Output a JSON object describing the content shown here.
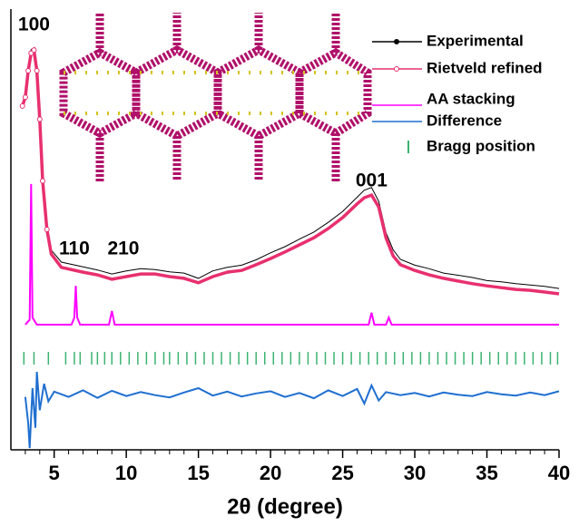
{
  "chart_data": {
    "type": "line",
    "xlabel": "2θ (degree)",
    "xlim": [
      2,
      40
    ],
    "xticks": [
      5,
      10,
      15,
      20,
      25,
      30,
      35,
      40
    ],
    "xminorticks": [
      3,
      4,
      6,
      7,
      8,
      9,
      11,
      12,
      13,
      14,
      16,
      17,
      18,
      19,
      21,
      22,
      23,
      24,
      26,
      27,
      28,
      29,
      31,
      32,
      33,
      34,
      36,
      37,
      38,
      39
    ],
    "ylim": [
      0,
      100
    ],
    "legend": "upper right",
    "annotations": [
      {
        "text": "100",
        "x": 3.6
      },
      {
        "text": "110",
        "x": 6.4
      },
      {
        "text": "210",
        "x": 9.8
      },
      {
        "text": "001",
        "x": 27
      }
    ],
    "series": [
      {
        "name": "Experimental",
        "color": "#000000",
        "x": [
          2.8,
          3,
          3.2,
          3.4,
          3.6,
          3.8,
          4,
          4.2,
          4.5,
          4.8,
          5.5,
          7,
          8,
          9,
          10,
          11,
          12,
          13,
          14,
          15,
          16,
          17,
          18,
          19,
          20,
          21,
          22,
          23,
          24,
          25,
          26,
          26.5,
          27,
          27.5,
          28,
          28.5,
          29,
          30,
          31,
          32,
          33,
          34,
          35,
          36,
          37,
          38,
          39,
          40
        ],
        "values": [
          78.5,
          80.6,
          86.4,
          90.8,
          91.2,
          86.5,
          75.6,
          61.7,
          50.8,
          45.3,
          42.6,
          41.5,
          40.8,
          39.9,
          40.6,
          41.1,
          40.9,
          40.4,
          40.1,
          38.9,
          40.6,
          41.4,
          41.9,
          43.1,
          44.7,
          46.1,
          47.8,
          49.4,
          51.6,
          54.1,
          57.3,
          58.9,
          59.5,
          56.4,
          49.3,
          45.4,
          43.2,
          41.9,
          41.1,
          40.1,
          39.6,
          39.1,
          38.4,
          38.1,
          37.7,
          37.4,
          37.1,
          36.6
        ]
      },
      {
        "name": "Rietveld refined",
        "color": "#e8306e",
        "x": [
          2.8,
          3,
          3.2,
          3.4,
          3.6,
          3.8,
          4,
          4.2,
          4.5,
          4.8,
          5.5,
          7,
          8,
          9,
          10,
          11,
          12,
          13,
          14,
          15,
          16,
          17,
          18,
          19,
          20,
          21,
          22,
          23,
          24,
          25,
          26,
          26.5,
          27,
          27.5,
          28,
          28.5,
          29,
          30,
          31,
          32,
          33,
          34,
          35,
          36,
          37,
          38,
          39,
          40
        ],
        "values": [
          78,
          80,
          86,
          90,
          90.7,
          86,
          75,
          61,
          50,
          44.4,
          41.4,
          40.3,
          39.7,
          38.7,
          39.3,
          39.9,
          39.9,
          39.3,
          38.9,
          37.9,
          39.3,
          40.3,
          40.7,
          42,
          43.4,
          44.9,
          46.5,
          48.1,
          50.2,
          52.7,
          55.8,
          57.2,
          57.8,
          55.1,
          48.1,
          44,
          42,
          40.7,
          39.7,
          38.9,
          38.3,
          37.7,
          37.2,
          36.8,
          36.4,
          36.2,
          35.8,
          35.4
        ]
      },
      {
        "name": "AA stacking",
        "color": "#ff00ff",
        "x": [
          3,
          3.3,
          3.4,
          3.5,
          3.8,
          6.2,
          6.4,
          6.5,
          6.6,
          6.8,
          8.8,
          9,
          9.2,
          26.8,
          27,
          27.2,
          28,
          28.2,
          28.4,
          40
        ],
        "values": [
          28.4,
          29.5,
          60.3,
          30,
          28.4,
          28.4,
          30,
          37.2,
          30,
          28.4,
          28.4,
          31.5,
          28.4,
          28.4,
          31.1,
          28.4,
          28.4,
          30,
          28.4,
          28.4
        ]
      },
      {
        "name": "Difference",
        "color": "#1f6fd0",
        "x": [
          3,
          3.2,
          3.3,
          3.5,
          3.7,
          3.8,
          4,
          4.3,
          4.6,
          5,
          6,
          7,
          8,
          9,
          10,
          11,
          12,
          13,
          14,
          15,
          16,
          17,
          18,
          19,
          20,
          21,
          22,
          23,
          24,
          25,
          26,
          26.5,
          27,
          27.5,
          28,
          29,
          30,
          31,
          32,
          33,
          34,
          35,
          36,
          37,
          38,
          39,
          40
        ],
        "values": [
          12,
          6,
          0.4,
          14,
          5,
          17.7,
          9,
          15,
          11,
          13.2,
          12,
          13.5,
          11.8,
          13.4,
          12.2,
          13.1,
          12.4,
          11.9,
          13,
          14,
          12.3,
          13.2,
          12.1,
          12.8,
          13.3,
          12,
          12.9,
          11.7,
          13.5,
          12.2,
          13.8,
          10.5,
          14.6,
          11.2,
          13.1,
          12.4,
          12.9,
          12.1,
          13,
          12.5,
          12.2,
          13.1,
          12.6,
          12.3,
          13,
          12.4,
          13.3
        ]
      },
      {
        "name": "Bragg position",
        "color": "#3cb371",
        "x": [
          2.9,
          3.6,
          4.6,
          5.8,
          6.4,
          6.8,
          7.6,
          8,
          8.5,
          9,
          9.6,
          10.2,
          10.8,
          11.4,
          12,
          12.6,
          13,
          13.6,
          14.2,
          14.8,
          15.4,
          16,
          16.6,
          17.2,
          17.8,
          18.4,
          19,
          19.6,
          20.2,
          20.8,
          21.4,
          22,
          22.6,
          23.2,
          23.8,
          24.4,
          25,
          25.6,
          26.2,
          26.8,
          27.4,
          28,
          28.6,
          29.2,
          29.8,
          30.4,
          31,
          31.6,
          32.2,
          32.8,
          33.4,
          34,
          34.6,
          35.2,
          35.8,
          36.4,
          37,
          37.6,
          38.2,
          38.8,
          39.4,
          39.9
        ]
      }
    ]
  }
}
